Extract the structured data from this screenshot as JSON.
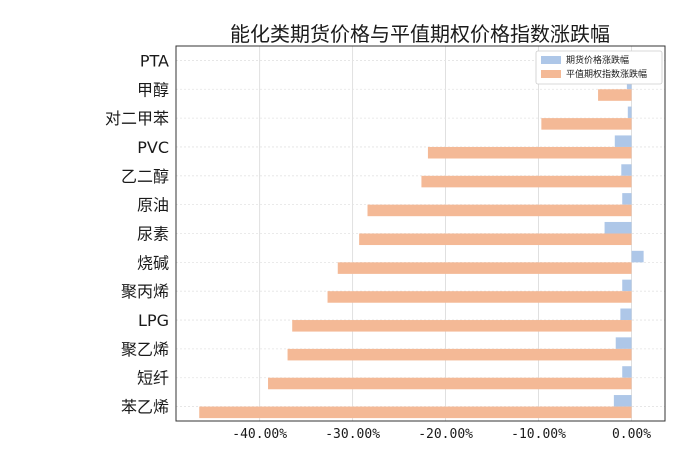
{
  "chart_data": {
    "type": "bar",
    "orientation": "horizontal",
    "title": "能化类期货价格与平值期权价格指数涨跌幅",
    "xlabel": "",
    "ylabel": "",
    "categories": [
      "PTA",
      "甲醇",
      "对二甲苯",
      "PVC",
      "乙二醇",
      "原油",
      "尿素",
      "烧碱",
      "聚丙烯",
      "LPG",
      "聚乙烯",
      "短纤",
      "苯乙烯"
    ],
    "series": [
      {
        "name": "期货价格涨跌幅",
        "color": "#aec7e8",
        "values": [
          0.0,
          -0.5,
          -0.4,
          -1.8,
          -1.1,
          -1.0,
          -2.9,
          1.3,
          -1.0,
          -1.2,
          -1.7,
          -1.0,
          -1.9
        ]
      },
      {
        "name": "平值期权指数涨跌幅",
        "color": "#f4b996",
        "values": [
          0.0,
          -3.6,
          -9.7,
          -21.9,
          -22.6,
          -28.4,
          -29.3,
          -31.6,
          -32.7,
          -36.5,
          -37.0,
          -39.1,
          -46.5
        ]
      }
    ],
    "xlim": [
      -49.0,
      3.6
    ],
    "xticks": [
      -40,
      -30,
      -20,
      -10,
      0
    ],
    "xtick_labels": [
      "-40.00%",
      "-30.00%",
      "-20.00%",
      "-10.00%",
      "0.00%"
    ],
    "grid": true,
    "legend_position": "top-right"
  }
}
